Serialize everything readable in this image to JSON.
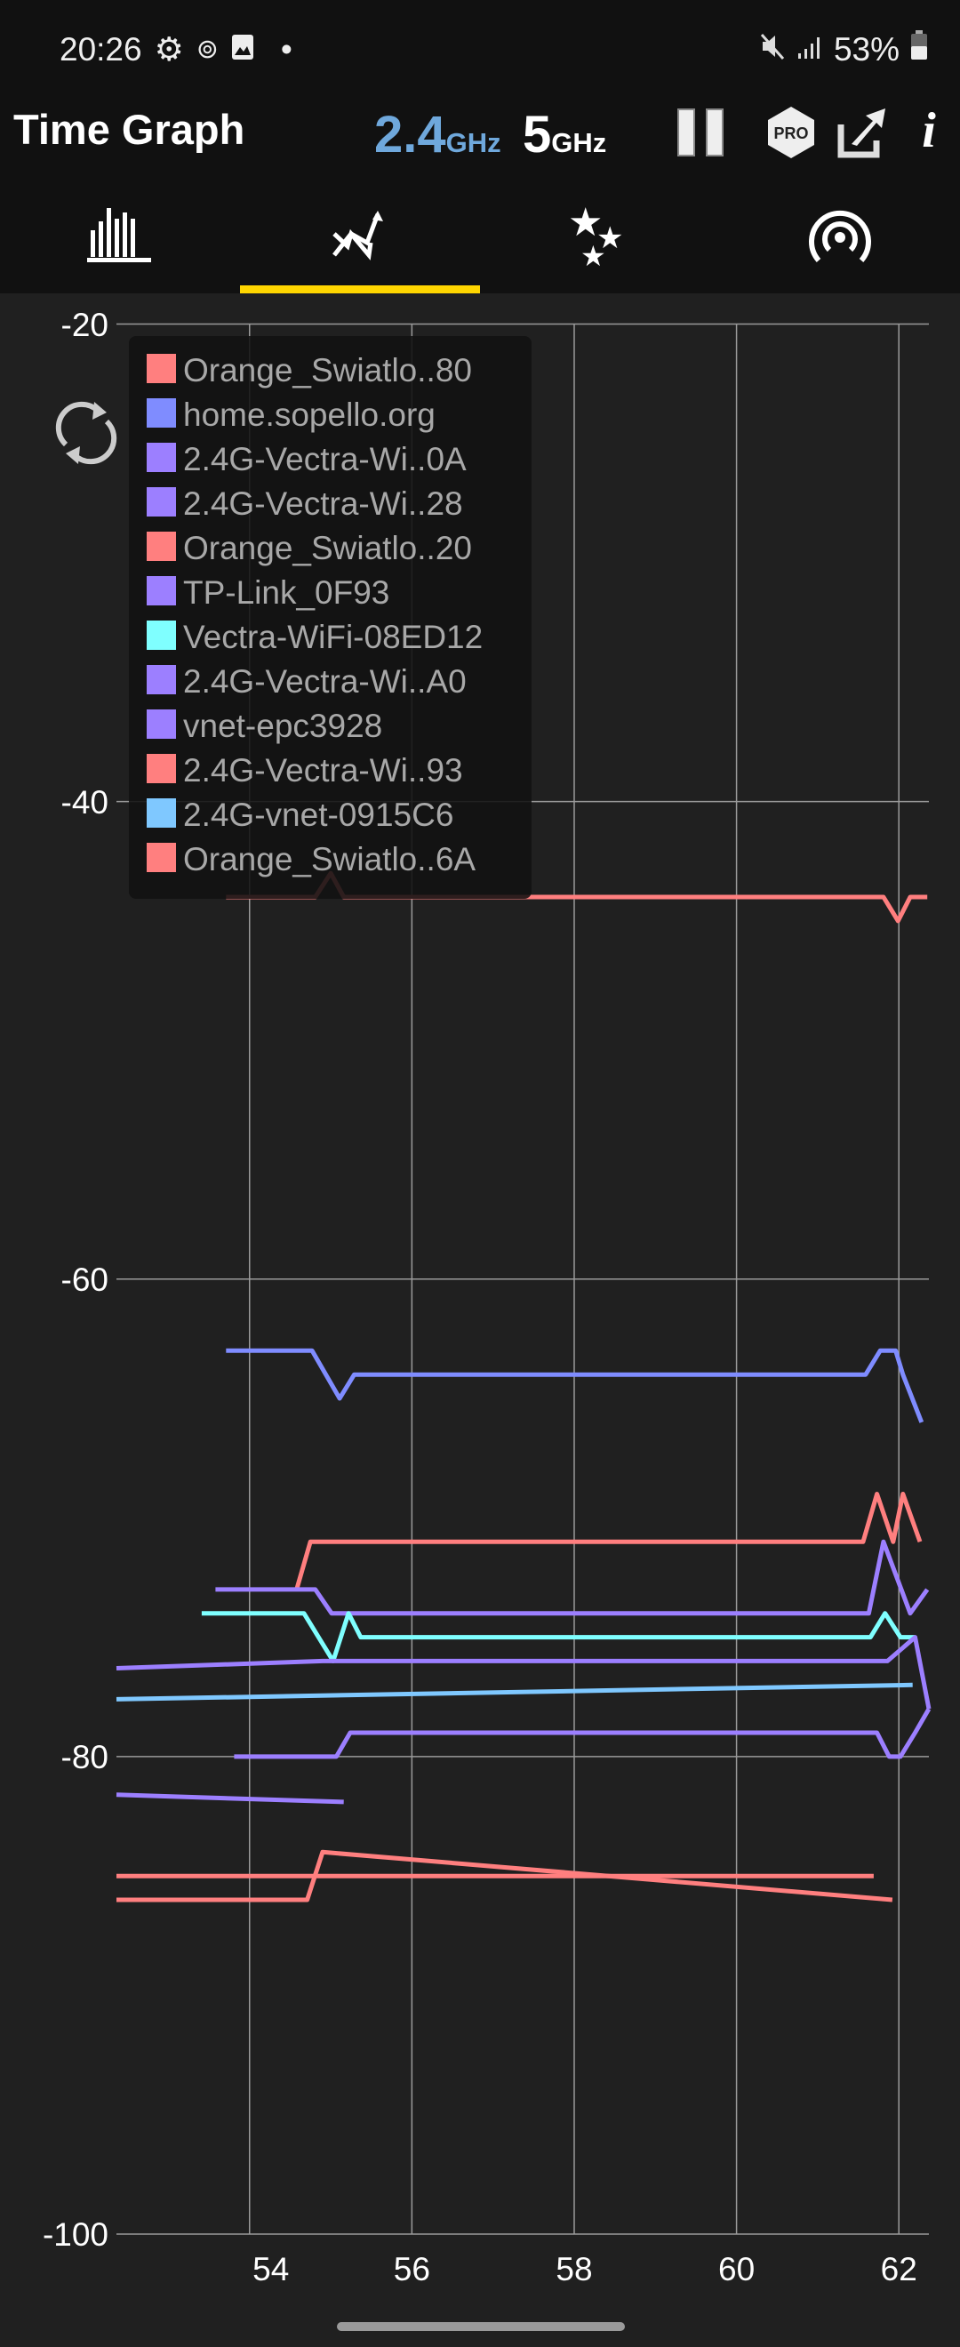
{
  "status_bar": {
    "time": "20:26",
    "battery": "53%",
    "icons_left": [
      "gear-icon",
      "sync-icon",
      "image-icon",
      "dot-icon"
    ],
    "icons_right": [
      "mute-icon",
      "signal-icon",
      "battery-icon"
    ]
  },
  "header": {
    "title": "Time Graph",
    "band_24": "2.4",
    "band_5": "5",
    "ghz": "GHz",
    "band_24_color": "#6fa8dc",
    "pro_label": "PRO",
    "info_label": "i"
  },
  "tabs": [
    {
      "name": "channel-graph",
      "active": false
    },
    {
      "name": "time-graph",
      "active": true
    },
    {
      "name": "channel-rating",
      "active": false
    },
    {
      "name": "ap-list",
      "active": false
    }
  ],
  "accent": "#ffd600",
  "chart_data": {
    "type": "line",
    "xlim": [
      52.36,
      62.37
    ],
    "ylim": [
      -100,
      -20
    ],
    "xticks": [
      "54",
      "56",
      "58",
      "60",
      "62"
    ],
    "xtick_values": [
      54,
      56,
      58,
      60,
      62
    ],
    "yticks": [
      "-20",
      "-40",
      "-60",
      "-80",
      "-100"
    ],
    "ytick_values": [
      -20,
      -40,
      -60,
      -80,
      -100
    ],
    "grid": true,
    "legend_position": "top-left",
    "legend": [
      {
        "name": "Orange_Swiatlo..80",
        "color": "#ff7f7f"
      },
      {
        "name": "home.sopello.org",
        "color": "#7f8cff"
      },
      {
        "name": "2.4G-Vectra-Wi..0A",
        "color": "#9c7fff"
      },
      {
        "name": "2.4G-Vectra-Wi..28",
        "color": "#9c7fff"
      },
      {
        "name": "Orange_Swiatlo..20",
        "color": "#ff7f7f"
      },
      {
        "name": "TP-Link_0F93",
        "color": "#9c7fff"
      },
      {
        "name": "Vectra-WiFi-08ED12",
        "color": "#7fffff"
      },
      {
        "name": "2.4G-Vectra-Wi..A0",
        "color": "#9c7fff"
      },
      {
        "name": "vnet-epc3928",
        "color": "#9c7fff"
      },
      {
        "name": "2.4G-Vectra-Wi..93",
        "color": "#ff7f7f"
      },
      {
        "name": "2.4G-vnet-0915C6",
        "color": "#7fc8ff"
      },
      {
        "name": "Orange_Swiatlo..6A",
        "color": "#ff7f7f"
      }
    ],
    "series": [
      {
        "color": "#ff7f7f",
        "points": [
          [
            53.71,
            -44
          ],
          [
            54.81,
            -44
          ],
          [
            55.0,
            -43
          ],
          [
            55.16,
            -44
          ],
          [
            61.81,
            -44
          ],
          [
            61.99,
            -45
          ],
          [
            62.14,
            -44
          ],
          [
            62.35,
            -44
          ]
        ]
      },
      {
        "color": "#7f8cff",
        "points": [
          [
            53.71,
            -63
          ],
          [
            54.77,
            -63
          ],
          [
            55.11,
            -65
          ],
          [
            55.29,
            -64
          ],
          [
            61.59,
            -64
          ],
          [
            61.77,
            -63
          ],
          [
            61.96,
            -63
          ],
          [
            62.05,
            -64
          ],
          [
            62.28,
            -66
          ]
        ]
      },
      {
        "color": "#ff7f7f",
        "points": [
          [
            54.58,
            -73
          ],
          [
            54.75,
            -71
          ],
          [
            61.56,
            -71
          ],
          [
            61.73,
            -69
          ],
          [
            61.93,
            -71
          ],
          [
            62.05,
            -69
          ],
          [
            62.26,
            -71
          ]
        ]
      },
      {
        "color": "#9c7fff",
        "points": [
          [
            53.58,
            -73
          ],
          [
            54.81,
            -73
          ],
          [
            55.01,
            -74
          ],
          [
            61.63,
            -74
          ],
          [
            61.81,
            -71
          ],
          [
            62.14,
            -74
          ],
          [
            62.35,
            -73
          ]
        ]
      },
      {
        "color": "#7fffff",
        "points": [
          [
            53.41,
            -74
          ],
          [
            54.67,
            -74
          ],
          [
            55.03,
            -76
          ],
          [
            55.22,
            -74
          ],
          [
            55.37,
            -75
          ],
          [
            61.65,
            -75
          ],
          [
            61.83,
            -74
          ],
          [
            62.02,
            -75
          ],
          [
            62.2,
            -75
          ]
        ]
      },
      {
        "color": "#9c7fff",
        "points": [
          [
            52.36,
            -76.3
          ],
          [
            54.9,
            -76
          ],
          [
            61.86,
            -76
          ],
          [
            62.2,
            -75
          ],
          [
            62.37,
            -78
          ]
        ]
      },
      {
        "color": "#7fc8ff",
        "points": [
          [
            52.36,
            -77.6
          ],
          [
            62.17,
            -77
          ]
        ]
      },
      {
        "color": "#9c7fff",
        "points": [
          [
            53.81,
            -80
          ],
          [
            55.07,
            -80
          ],
          [
            55.24,
            -79
          ],
          [
            61.73,
            -79
          ],
          [
            61.88,
            -80
          ],
          [
            62.02,
            -80
          ],
          [
            62.2,
            -79
          ],
          [
            62.37,
            -78
          ]
        ]
      },
      {
        "color": "#9c7fff",
        "points": [
          [
            52.36,
            -81.6
          ],
          [
            55.16,
            -81.9
          ]
        ]
      },
      {
        "color": "#ff7f7f",
        "points": [
          [
            52.36,
            -85
          ],
          [
            61.69,
            -85
          ]
        ]
      },
      {
        "color": "#ff7f7f",
        "points": [
          [
            52.36,
            -86
          ],
          [
            54.71,
            -86
          ],
          [
            54.9,
            -84
          ],
          [
            61.92,
            -86
          ]
        ]
      }
    ]
  }
}
